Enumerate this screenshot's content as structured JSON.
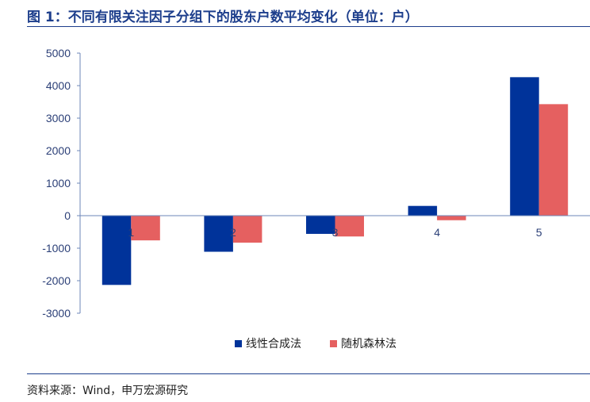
{
  "figure": {
    "title": "图 1：不同有限关注因子分组下的股东户数平均变化（单位：户）",
    "source": "资料来源：Wind，申万宏源研究"
  },
  "colors": {
    "accent": "#1d3e8c",
    "series_1": "#00339a",
    "series_2": "#e56060",
    "axis_text": "#2b3f77"
  },
  "chart_data": {
    "type": "bar",
    "categories": [
      "1",
      "2",
      "3",
      "4",
      "5"
    ],
    "series": [
      {
        "name": "线性合成法",
        "values": [
          -2130,
          -1110,
          -560,
          300,
          4260
        ]
      },
      {
        "name": "随机森林法",
        "values": [
          -760,
          -830,
          -640,
          -140,
          3430
        ]
      }
    ],
    "ylim": [
      -3000,
      5000
    ],
    "yticks": [
      5000,
      4000,
      3000,
      2000,
      1000,
      0,
      -1000,
      -2000,
      -3000
    ],
    "xlabel": "",
    "ylabel": "",
    "grid": false,
    "legend_position": "bottom-center"
  }
}
